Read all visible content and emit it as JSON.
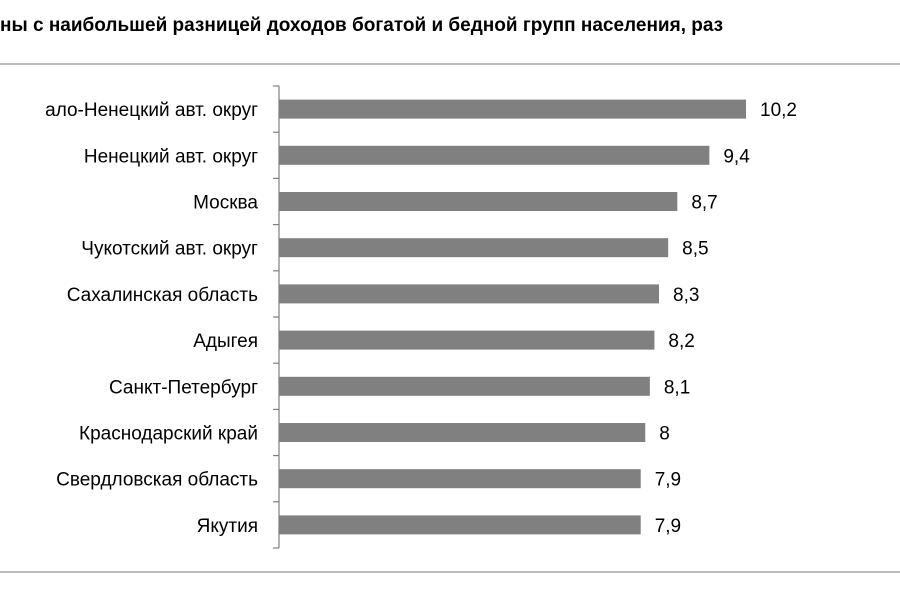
{
  "chart_data": {
    "type": "bar",
    "orientation": "horizontal",
    "title": "ны с наибольшей разницей доходов богатой и бедной групп населения, раз",
    "categories": [
      "ало-Ненецкий авт. округ",
      "Ненецкий авт. округ",
      "Москва",
      "Чукотский авт. округ",
      "Сахалинская область",
      "Адыгея",
      "Санкт-Петербург",
      "Краснодарский край",
      "Свердловская область",
      "Якутия"
    ],
    "values": [
      10.2,
      9.4,
      8.7,
      8.5,
      8.3,
      8.2,
      8.1,
      8,
      7.9,
      7.9
    ],
    "value_labels": [
      "10,2",
      "9,4",
      "8,7",
      "8,5",
      "8,3",
      "8,2",
      "8,1",
      "8",
      "7,9",
      "7,9"
    ],
    "xlim": [
      0,
      10.2
    ],
    "grid": false,
    "legend": "none",
    "colors": {
      "bar": "#808080",
      "axis": "#7f7f7f",
      "rule": "#a6a6a6"
    }
  }
}
